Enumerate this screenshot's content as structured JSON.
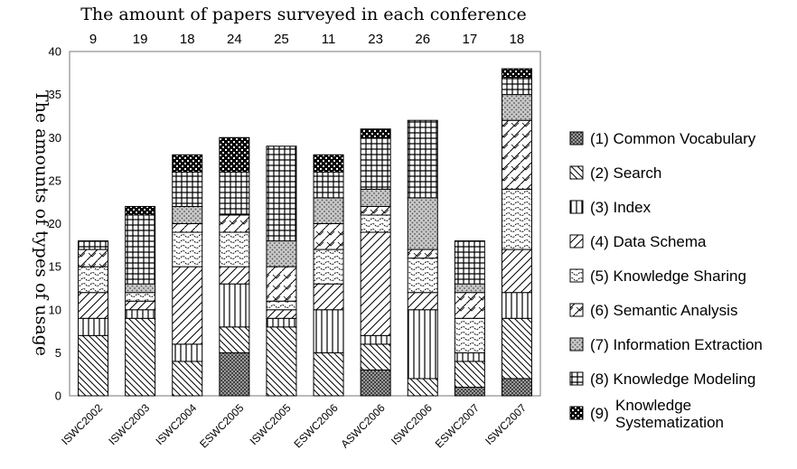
{
  "chart_data": {
    "type": "bar",
    "stacked": true,
    "title": "The amount of papers surveyed in each conference",
    "ylabel": "The amounts of types of usage",
    "xlabel": "",
    "ylim": [
      0,
      40
    ],
    "yticks": [
      0,
      5,
      10,
      15,
      20,
      25,
      30,
      35,
      40
    ],
    "grid": false,
    "legend_position": "right",
    "categories": [
      "ISWC2002",
      "ISWC2003",
      "ISWC2004",
      "ESWC2005",
      "ISWC2005",
      "ESWC2006",
      "ASWC2006",
      "ISWC2006",
      "ESWC2007",
      "ISWC2007"
    ],
    "paper_counts": [
      9,
      19,
      18,
      24,
      25,
      11,
      23,
      26,
      17,
      18
    ],
    "series": [
      {
        "name": "(1) Common Vocabulary",
        "pattern": "dense-dots",
        "values": [
          0,
          0,
          0,
          5,
          0,
          0,
          3,
          0,
          1,
          2
        ]
      },
      {
        "name": "(2) Search",
        "pattern": "back-diagonal",
        "values": [
          7,
          9,
          4,
          3,
          8,
          5,
          3,
          2,
          3,
          7
        ]
      },
      {
        "name": "(3) Index",
        "pattern": "vertical-lines",
        "values": [
          2,
          1,
          2,
          5,
          1,
          5,
          1,
          8,
          1,
          3
        ]
      },
      {
        "name": "(4) Data Schema",
        "pattern": "forward-diagonal",
        "values": [
          3,
          1,
          9,
          2,
          1,
          3,
          12,
          2,
          0,
          5
        ]
      },
      {
        "name": "(5) Knowledge Sharing",
        "pattern": "waves",
        "values": [
          3,
          1,
          4,
          4,
          1,
          4,
          2,
          4,
          4,
          7
        ]
      },
      {
        "name": "(6) Semantic Analysis",
        "pattern": "zigzag",
        "values": [
          2,
          0,
          1,
          2,
          4,
          3,
          1,
          1,
          3,
          8
        ]
      },
      {
        "name": "(7) Information Extraction",
        "pattern": "light-dots",
        "values": [
          0,
          1,
          2,
          0,
          3,
          3,
          2,
          6,
          1,
          3
        ]
      },
      {
        "name": "(8) Knowledge Modeling",
        "pattern": "grid",
        "values": [
          1,
          8,
          4,
          5,
          11,
          3,
          6,
          9,
          5,
          2
        ]
      },
      {
        "name": "(9) Knowledge Systematization",
        "label_lines": [
          "Knowledge",
          "Systematization"
        ],
        "pattern": "checker",
        "values": [
          0,
          1,
          2,
          4,
          0,
          2,
          1,
          0,
          0,
          1
        ]
      }
    ]
  }
}
